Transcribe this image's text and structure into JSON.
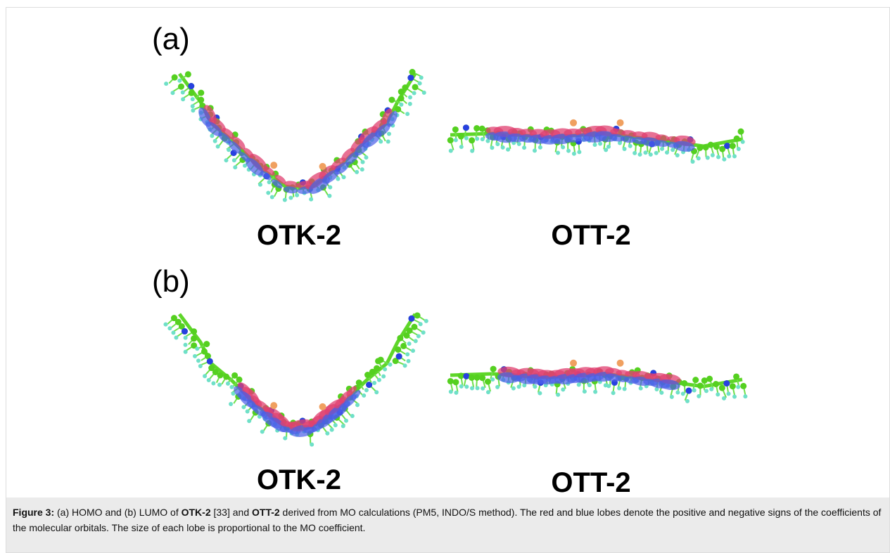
{
  "panels": [
    {
      "label": "(a)",
      "molecules": [
        {
          "name": "OTK-2"
        },
        {
          "name": "OTT-2"
        }
      ]
    },
    {
      "label": "(b)",
      "molecules": [
        {
          "name": "OTK-2"
        },
        {
          "name": "OTT-2"
        }
      ]
    }
  ],
  "caption": {
    "runs": [
      {
        "text": "Figure 3:",
        "bold": true
      },
      {
        "text": " (a) HOMO and (b) LUMO of ",
        "bold": false
      },
      {
        "text": "OTK-2",
        "bold": true
      },
      {
        "text": " [33] and ",
        "bold": false
      },
      {
        "text": "OTT-2",
        "bold": true
      },
      {
        "text": " derived from MO calculations (PM5, INDO/S method). The red and blue lobes denote the positive and negative signs of the coefficients of the molecular orbitals. The size of each lobe is proportional to the MO coefficient.",
        "bold": false
      }
    ]
  }
}
